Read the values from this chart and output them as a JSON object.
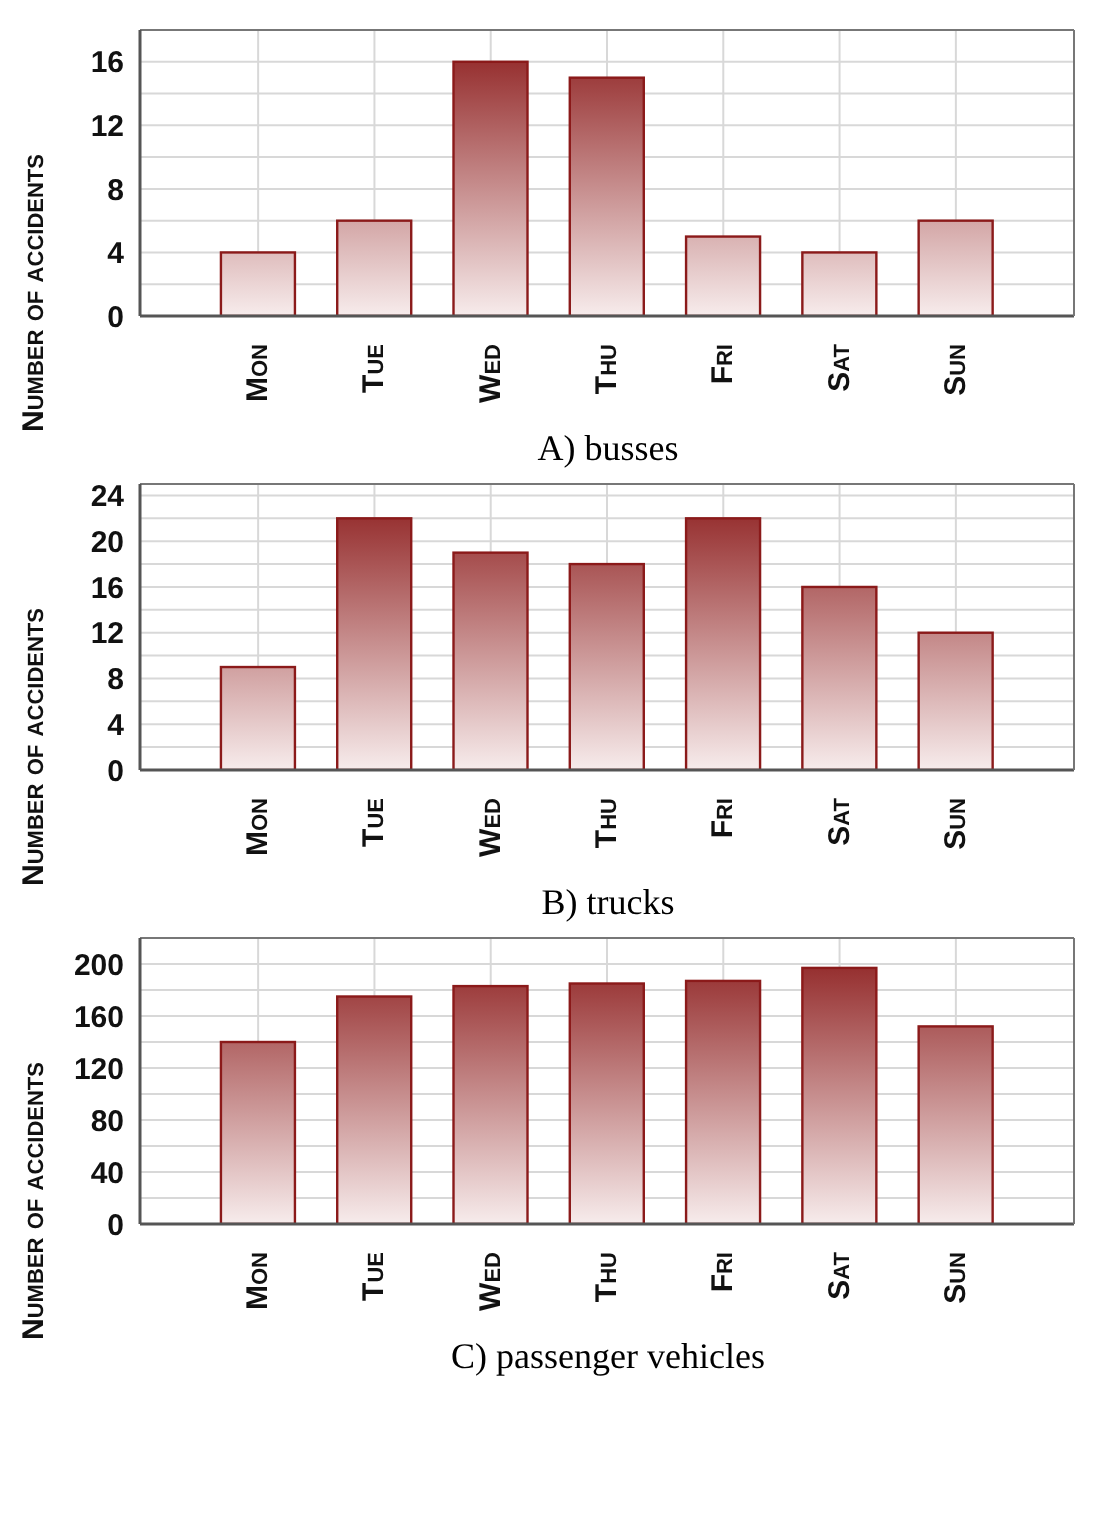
{
  "chart_data": [
    {
      "type": "bar",
      "title": "A) busses",
      "ylabel": "Number of accidents",
      "categories": [
        "Mon",
        "Tue",
        "Wed",
        "Thu",
        "Fri",
        "Sat",
        "Sun"
      ],
      "values": [
        4,
        6,
        16,
        15,
        5,
        4,
        6
      ],
      "color": "#8b1a1a",
      "ylim": [
        0,
        18
      ],
      "yticks": [
        0,
        {
          "value": 2,
          "label": null
        },
        4,
        {
          "value": 6,
          "label": null
        },
        8,
        {
          "value": 10,
          "label": null
        },
        12,
        {
          "value": 14,
          "label": null
        },
        16,
        {
          "value": 18,
          "label": null
        }
      ],
      "grid": true
    },
    {
      "type": "bar",
      "title": "B) trucks",
      "ylabel": "Number of accidents",
      "categories": [
        "Mon",
        "Tue",
        "Wed",
        "Thu",
        "Fri",
        "Sat",
        "Sun"
      ],
      "values": [
        9,
        22,
        19,
        18,
        22,
        16,
        12
      ],
      "color": "#8b1a1a",
      "ylim": [
        0,
        25
      ],
      "yticks": [
        0,
        {
          "value": 2,
          "label": null
        },
        4,
        {
          "value": 6,
          "label": null
        },
        8,
        {
          "value": 10,
          "label": null
        },
        12,
        {
          "value": 14,
          "label": null
        },
        16,
        {
          "value": 18,
          "label": null
        },
        20,
        {
          "value": 22,
          "label": null
        },
        24
      ],
      "grid": true
    },
    {
      "type": "bar",
      "title": "C) passenger vehicles",
      "ylabel": "Number of accidents",
      "categories": [
        "Mon",
        "Tue",
        "Wed",
        "Thu",
        "Fri",
        "Sat",
        "Sun"
      ],
      "values": [
        140,
        175,
        183,
        185,
        187,
        197,
        152
      ],
      "color": "#8b1a1a",
      "ylim": [
        0,
        220
      ],
      "yticks": [
        0,
        {
          "value": 20,
          "label": null
        },
        40,
        {
          "value": 60,
          "label": null
        },
        80,
        {
          "value": 100,
          "label": null
        },
        120,
        {
          "value": 140,
          "label": null
        },
        160,
        {
          "value": 180,
          "label": null
        },
        200,
        {
          "value": 220,
          "label": null
        }
      ],
      "grid": true
    }
  ]
}
